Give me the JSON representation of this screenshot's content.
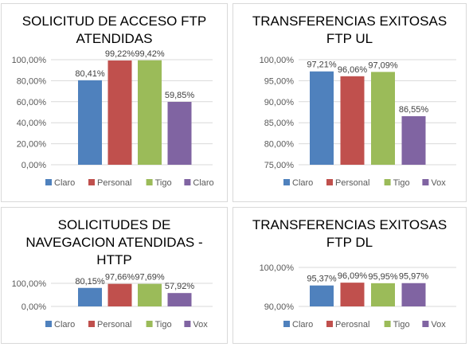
{
  "colors": {
    "blue": "#4f81bd",
    "red": "#c0504d",
    "green": "#9bbb59",
    "purple": "#8064a2",
    "axis_text": "#595959",
    "grid": "#d9d9d9",
    "label": "#404040"
  },
  "chart_data": [
    {
      "type": "bar",
      "title": "SOLICITUD DE ACCESO FTP\nATENDIDAS",
      "categories": [
        "Claro",
        "Personal",
        "Tigo",
        "Claro"
      ],
      "values": [
        80.41,
        99.22,
        99.42,
        59.85
      ],
      "data_labels": [
        "80,41%",
        "99,22%",
        "99,42%",
        "59,85%"
      ],
      "ylim": [
        0,
        100
      ],
      "yticks": [
        "0,00%",
        "20,00%",
        "40,00%",
        "60,00%",
        "80,00%",
        "100,00%"
      ],
      "ytick_values": [
        0,
        20,
        40,
        60,
        80,
        100
      ],
      "grid": true,
      "legend_position": "bottom"
    },
    {
      "type": "bar",
      "title": "TRANSFERENCIAS EXITOSAS\nFTP UL",
      "categories": [
        "Claro",
        "Personal",
        "Tigo",
        "Vox"
      ],
      "values": [
        97.21,
        96.06,
        97.09,
        86.55
      ],
      "data_labels": [
        "97,21%",
        "96,06%",
        "97,09%",
        "86,55%"
      ],
      "ylim": [
        75,
        100
      ],
      "yticks": [
        "75,00%",
        "80,00%",
        "85,00%",
        "90,00%",
        "95,00%",
        "100,00%"
      ],
      "ytick_values": [
        75,
        80,
        85,
        90,
        95,
        100
      ],
      "grid": true,
      "legend_position": "bottom"
    },
    {
      "type": "bar",
      "title": "SOLICITUDES DE\nNAVEGACION ATENDIDAS -\nHTTP",
      "categories": [
        "Claro",
        "Personal",
        "Tigo",
        "Vox"
      ],
      "values": [
        80.15,
        97.66,
        97.69,
        57.92
      ],
      "data_labels": [
        "80,15%",
        "97,66%",
        "97,69%",
        "57,92%"
      ],
      "ylim": [
        0,
        100
      ],
      "yticks": [
        "0,00%",
        "100,00%"
      ],
      "ytick_values": [
        0,
        100
      ],
      "grid": true,
      "legend_position": "bottom"
    },
    {
      "type": "bar",
      "title": "TRANSFERENCIAS EXITOSAS\nFTP DL",
      "categories": [
        "Claro",
        "Perosnal",
        "Tigo",
        "Vox"
      ],
      "values": [
        95.37,
        96.09,
        95.95,
        95.97
      ],
      "data_labels": [
        "95,37%",
        "96,09%",
        "95,95%",
        "95,97%"
      ],
      "ylim": [
        90,
        100
      ],
      "yticks": [
        "90,00%",
        "100,00%"
      ],
      "ytick_values": [
        90,
        100
      ],
      "grid": true,
      "legend_position": "bottom"
    }
  ]
}
